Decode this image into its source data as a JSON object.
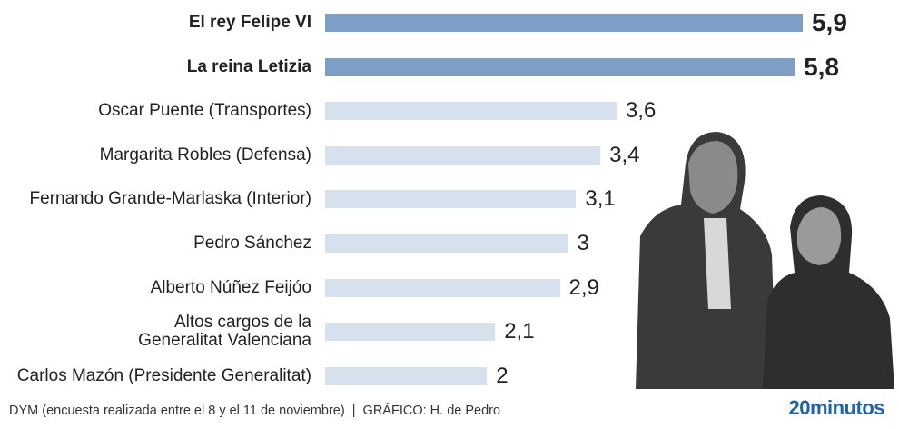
{
  "chart_data": {
    "type": "hbar",
    "categories": [
      "El rey Felipe VI",
      "La reina Letizia",
      "Oscar Puente (Transportes)",
      "Margarita Robles (Defensa)",
      "Fernando Grande-Marlaska (Interior)",
      "Pedro Sánchez",
      "Alberto Núñez Feijóo",
      "Altos cargos de la Generalitat Valenciana",
      "Carlos Mazón (Presidente Generalitat)"
    ],
    "values": [
      5.9,
      5.8,
      3.6,
      3.4,
      3.1,
      3,
      2.9,
      2.1,
      2
    ],
    "value_labels": [
      "5,9",
      "5,8",
      "3,6",
      "3,4",
      "3,1",
      "3",
      "2,9",
      "2,1",
      "2"
    ],
    "colors": [
      "#7e9ec6",
      "#7e9ec6",
      "#d7e1ee",
      "#d7e1ee",
      "#d7e1ee",
      "#d7e1ee",
      "#d7e1ee",
      "#d7e1ee",
      "#d7e1ee"
    ],
    "emphasis": [
      true,
      true,
      false,
      false,
      false,
      false,
      false,
      false,
      false
    ],
    "source": "DYM (encuesta realizada entre el 8 y el 11 de noviembre)  |  GRÁFICO: H. de Pedro",
    "logo": "20minutos"
  }
}
